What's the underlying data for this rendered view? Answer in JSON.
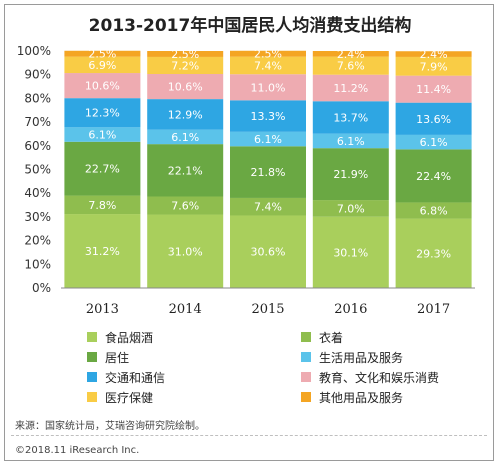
{
  "chart_data": {
    "type": "bar",
    "stacked": true,
    "title": "2013-2017年中国居民人均消费支出结构",
    "categories": [
      "2013",
      "2014",
      "2015",
      "2016",
      "2017"
    ],
    "ylim": [
      0,
      100
    ],
    "y_ticks": [
      "0%",
      "10%",
      "20%",
      "30%",
      "40%",
      "50%",
      "60%",
      "70%",
      "80%",
      "90%",
      "100%"
    ],
    "grid": false,
    "legend_position": "bottom",
    "series": [
      {
        "name": "食品烟酒",
        "color": "#a9cf5c",
        "values": [
          31.2,
          31.0,
          30.6,
          30.1,
          29.3
        ],
        "labels": [
          "31.2%",
          "31.0%",
          "30.6%",
          "30.1%",
          "29.3%"
        ]
      },
      {
        "name": "衣着",
        "color": "#8fbd4e",
        "values": [
          7.8,
          7.6,
          7.4,
          7.0,
          6.8
        ],
        "labels": [
          "7.8%",
          "7.6%",
          "7.4%",
          "7.0%",
          "6.8%"
        ]
      },
      {
        "name": "居住",
        "color": "#6aa843",
        "values": [
          22.7,
          22.1,
          21.8,
          21.9,
          22.4
        ],
        "labels": [
          "22.7%",
          "22.1%",
          "21.8%",
          "21.9%",
          "22.4%"
        ]
      },
      {
        "name": "生活用品及服务",
        "color": "#5bc3ea",
        "values": [
          6.1,
          6.1,
          6.1,
          6.1,
          6.1
        ],
        "labels": [
          "6.1%",
          "6.1%",
          "6.1%",
          "6.1%",
          "6.1%"
        ]
      },
      {
        "name": "交通和通信",
        "color": "#2ea6e3",
        "values": [
          12.3,
          12.9,
          13.3,
          13.7,
          13.6
        ],
        "labels": [
          "12.3%",
          "12.9%",
          "13.3%",
          "13.7%",
          "13.6%"
        ]
      },
      {
        "name": "教育、文化和娱乐消费",
        "color": "#eeabb1",
        "values": [
          10.6,
          10.6,
          11.0,
          11.2,
          11.4
        ],
        "labels": [
          "10.6%",
          "10.6%",
          "11.0%",
          "11.2%",
          "11.4%"
        ]
      },
      {
        "name": "医疗保健",
        "color": "#f9cc45",
        "values": [
          6.9,
          7.2,
          7.4,
          7.6,
          7.9
        ],
        "labels": [
          "6.9%",
          "7.2%",
          "7.4%",
          "7.6%",
          "7.9%"
        ]
      },
      {
        "name": "其他用品及服务",
        "color": "#f4a523",
        "values": [
          2.5,
          2.5,
          2.5,
          2.4,
          2.4
        ],
        "labels": [
          "2.5%",
          "2.5%",
          "2.5%",
          "2.4%",
          "2.4%"
        ]
      }
    ]
  },
  "footer": {
    "source": "来源：国家统计局，艾瑞咨询研究院绘制。",
    "copyright": "©2018.11 iResearch Inc."
  }
}
